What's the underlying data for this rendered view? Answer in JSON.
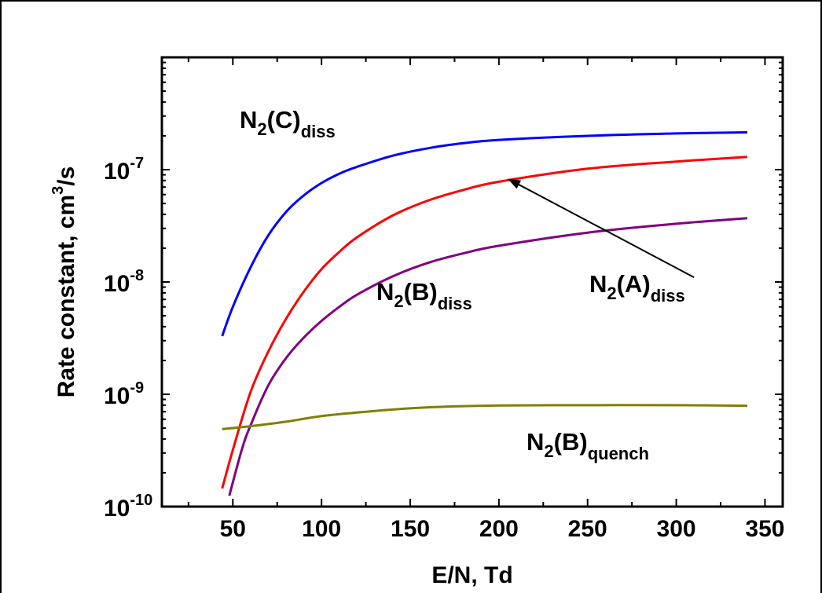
{
  "chart_data": {
    "type": "line",
    "title": "",
    "xlabel": "E/N, Td",
    "ylabel": {
      "base": "Rate constant, cm",
      "sup": "3",
      "tail": "/s"
    },
    "xlim": [
      10,
      360
    ],
    "ylim": [
      1e-10,
      1e-06
    ],
    "yscale": "log",
    "x_ticks": [
      50,
      100,
      150,
      200,
      250,
      300,
      350
    ],
    "y_ticks": [
      {
        "value": 1e-10,
        "base": "10",
        "exp": "-10"
      },
      {
        "value": 1e-09,
        "base": "10",
        "exp": "-9"
      },
      {
        "value": 1e-08,
        "base": "10",
        "exp": "-8"
      },
      {
        "value": 1e-07,
        "base": "10",
        "exp": "-7"
      }
    ],
    "series": [
      {
        "key": "n2c-diss",
        "color": "#0000ff",
        "label": {
          "pre": "N",
          "sub1": "2",
          "mid": "(C)",
          "sub2": "diss"
        },
        "x": [
          44,
          50,
          60,
          70,
          80,
          90,
          100,
          110,
          120,
          140,
          160,
          180,
          200,
          250,
          300,
          340
        ],
        "y": [
          3.3e-09,
          6e-09,
          1.35e-08,
          2.6e-08,
          4.2e-08,
          5.9e-08,
          7.6e-08,
          9.2e-08,
          1.06e-07,
          1.33e-07,
          1.55e-07,
          1.72e-07,
          1.84e-07,
          2e-07,
          2.1e-07,
          2.15e-07
        ]
      },
      {
        "key": "n2a-diss",
        "color": "#ff0000",
        "label": {
          "pre": "N",
          "sub1": "2",
          "mid": "(A)",
          "sub2": "diss"
        },
        "x": [
          44,
          50,
          60,
          70,
          80,
          90,
          100,
          110,
          120,
          140,
          160,
          180,
          200,
          250,
          300,
          340
        ],
        "y": [
          1.45e-10,
          3.2e-10,
          1.05e-09,
          2.4e-09,
          4.7e-09,
          8.2e-09,
          1.3e-08,
          1.85e-08,
          2.5e-08,
          3.9e-08,
          5.3e-08,
          6.6e-08,
          7.8e-08,
          1.02e-07,
          1.18e-07,
          1.3e-07
        ]
      },
      {
        "key": "n2b-diss",
        "color": "#800080",
        "label": {
          "pre": "N",
          "sub1": "2",
          "mid": "(B)",
          "sub2": "diss"
        },
        "x": [
          48,
          55,
          60,
          70,
          80,
          90,
          100,
          110,
          120,
          140,
          160,
          180,
          200,
          250,
          300,
          340
        ],
        "y": [
          1.25e-10,
          3.2e-10,
          5.3e-10,
          1.2e-09,
          2.1e-09,
          3.2e-09,
          4.5e-09,
          6e-09,
          7.7e-09,
          1.12e-08,
          1.48e-08,
          1.8e-08,
          2.1e-08,
          2.75e-08,
          3.3e-08,
          3.7e-08
        ]
      },
      {
        "key": "n2b-quench",
        "color": "#808000",
        "label": {
          "pre": "N",
          "sub1": "2",
          "mid": "(B)",
          "sub2": "quench"
        },
        "x": [
          44,
          60,
          80,
          100,
          125,
          150,
          175,
          200,
          250,
          300,
          340
        ],
        "y": [
          4.9e-10,
          5.2e-10,
          5.7e-10,
          6.4e-10,
          7e-10,
          7.5e-10,
          7.8e-10,
          7.95e-10,
          8e-10,
          8e-10,
          7.9e-10
        ]
      }
    ],
    "arrow": {
      "from_series": "n2a-diss",
      "from": [
        310,
        1.1e-08
      ],
      "to": [
        205,
        8.3e-08
      ]
    }
  }
}
